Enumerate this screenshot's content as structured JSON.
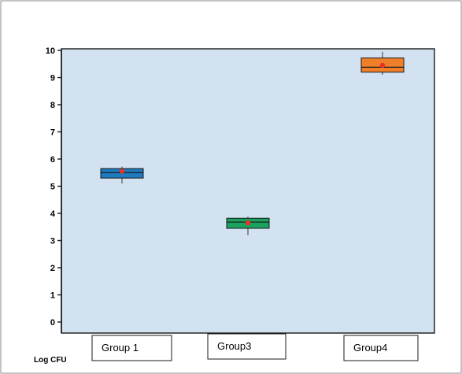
{
  "chart_data": {
    "type": "box",
    "ylabel": "Log CFU",
    "ylim": [
      0,
      10
    ],
    "yticks": [
      "0",
      "1",
      "2",
      "3",
      "4",
      "5",
      "6",
      "7",
      "8",
      "9",
      "10"
    ],
    "categories": [
      "Group 1",
      "Group3",
      "Group4"
    ],
    "boxes": [
      {
        "category": "Group 1",
        "whisker_low": 5.1,
        "q1": 5.3,
        "median": 5.5,
        "q3": 5.65,
        "whisker_high": 5.72,
        "mean": 5.55,
        "color": "#1f7bbf"
      },
      {
        "category": "Group3",
        "whisker_low": 3.2,
        "q1": 3.45,
        "median": 3.68,
        "q3": 3.82,
        "whisker_high": 3.88,
        "mean": 3.65,
        "color": "#19a35f"
      },
      {
        "category": "Group4",
        "whisker_low": 9.1,
        "q1": 9.2,
        "median": 9.38,
        "q3": 9.72,
        "whisker_high": 9.95,
        "mean": 9.45,
        "color": "#f07f2a"
      }
    ],
    "mean_marker_color": "#e8322b",
    "plot_background": "#d3e2f0",
    "grid": false,
    "legend": "none"
  }
}
